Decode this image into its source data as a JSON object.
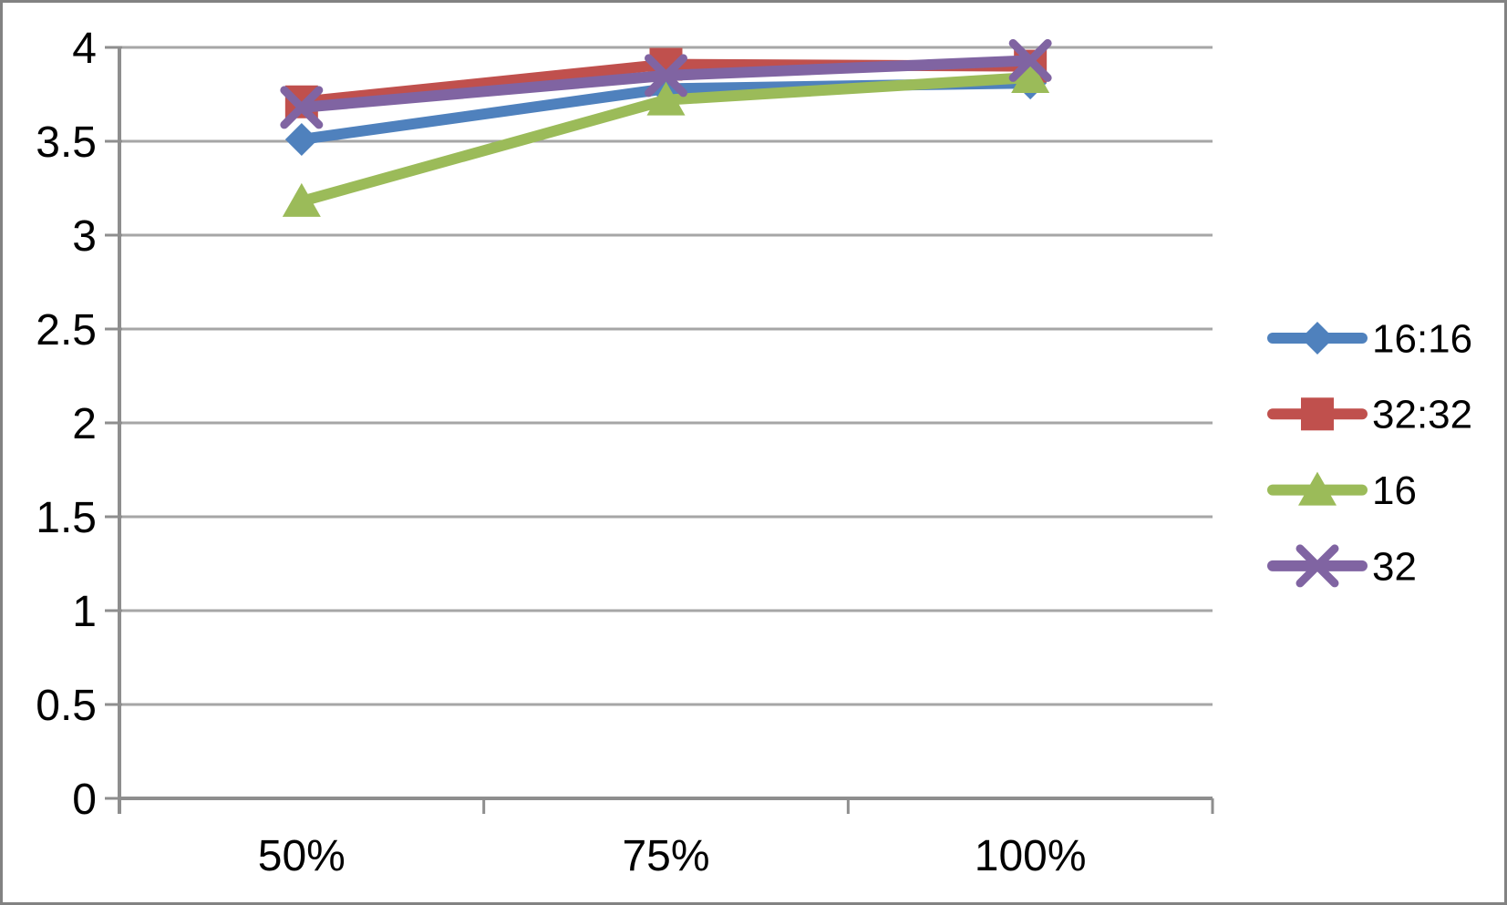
{
  "chart_data": {
    "type": "line",
    "title": "",
    "xlabel": "",
    "ylabel": "",
    "categories": [
      "50%",
      "75%",
      "100%"
    ],
    "series": [
      {
        "name": "16:16",
        "marker": "diamond-icon",
        "color": "#4F81BD",
        "values": [
          3.51,
          3.78,
          3.81
        ]
      },
      {
        "name": "32:32",
        "marker": "square-icon",
        "color": "#C0504D",
        "values": [
          3.71,
          3.91,
          3.9
        ]
      },
      {
        "name": "16",
        "marker": "triangle-icon",
        "color": "#9BBB59",
        "values": [
          3.18,
          3.72,
          3.84
        ]
      },
      {
        "name": "32",
        "marker": "x-icon",
        "color": "#8064A2",
        "values": [
          3.68,
          3.85,
          3.93
        ]
      }
    ],
    "ylim": [
      0,
      4
    ],
    "ytick_step": 0.5,
    "ytick_labels": [
      "0",
      "0.5",
      "1",
      "1.5",
      "2",
      "2.5",
      "3",
      "3.5",
      "4"
    ],
    "grid": true,
    "legend_position": "right",
    "legend_labels": [
      "16:16",
      "32:32",
      "16",
      "32"
    ],
    "colors": {
      "gridline": "#A6A6A6",
      "axis": "#8E8E8E",
      "text": "#000000",
      "frame_border": "#828282",
      "background": "#FFFFFF"
    }
  }
}
